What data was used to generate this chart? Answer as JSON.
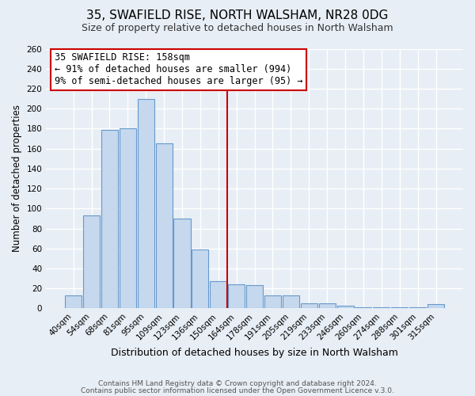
{
  "title": "35, SWAFIELD RISE, NORTH WALSHAM, NR28 0DG",
  "subtitle": "Size of property relative to detached houses in North Walsham",
  "xlabel": "Distribution of detached houses by size in North Walsham",
  "ylabel": "Number of detached properties",
  "bar_color": "#c5d8ed",
  "bar_edge_color": "#6699cc",
  "bin_labels": [
    "40sqm",
    "54sqm",
    "68sqm",
    "81sqm",
    "95sqm",
    "109sqm",
    "123sqm",
    "136sqm",
    "150sqm",
    "164sqm",
    "178sqm",
    "191sqm",
    "205sqm",
    "219sqm",
    "233sqm",
    "246sqm",
    "260sqm",
    "274sqm",
    "288sqm",
    "301sqm",
    "315sqm"
  ],
  "bar_heights": [
    13,
    93,
    179,
    180,
    210,
    165,
    90,
    59,
    27,
    24,
    23,
    13,
    13,
    5,
    5,
    3,
    1,
    1,
    1,
    1,
    4
  ],
  "vline_color": "#cc0000",
  "annotation_title": "35 SWAFIELD RISE: 158sqm",
  "annotation_line1": "← 91% of detached houses are smaller (994)",
  "annotation_line2": "9% of semi-detached houses are larger (95) →",
  "annotation_box_color": "#ffffff",
  "annotation_box_edge": "#cc0000",
  "ylim": [
    0,
    260
  ],
  "yticks": [
    0,
    20,
    40,
    60,
    80,
    100,
    120,
    140,
    160,
    180,
    200,
    220,
    240,
    260
  ],
  "footer1": "Contains HM Land Registry data © Crown copyright and database right 2024.",
  "footer2": "Contains public sector information licensed under the Open Government Licence v.3.0.",
  "bg_color": "#e8eef5",
  "plot_bg_color": "#e8eef5",
  "grid_color": "#ffffff",
  "title_fontsize": 11,
  "subtitle_fontsize": 9,
  "xlabel_fontsize": 9,
  "ylabel_fontsize": 8.5,
  "tick_fontsize": 7.5,
  "footer_fontsize": 6.5,
  "annot_fontsize": 8.5
}
